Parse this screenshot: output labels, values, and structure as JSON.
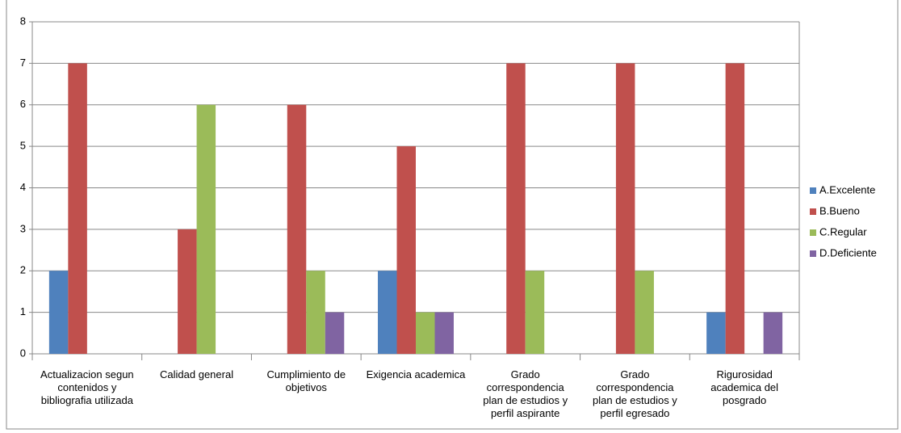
{
  "chart_data": {
    "type": "bar",
    "categories": [
      "Actualizacion segun contenidos y bibliografia utilizada",
      "Calidad general",
      "Cumplimiento de objetivos",
      "Exigencia academica",
      "Grado correspondencia plan de estudios y perfil aspirante",
      "Grado correspondencia plan de estudios y perfil egresado",
      "Rigurosidad academica del posgrado"
    ],
    "series": [
      {
        "name": "A.Excelente",
        "color": "#4f81bd",
        "values": [
          2,
          0,
          0,
          2,
          0,
          0,
          1
        ]
      },
      {
        "name": "B.Bueno",
        "color": "#c0504d",
        "values": [
          7,
          3,
          6,
          5,
          7,
          7,
          7
        ]
      },
      {
        "name": "C.Regular",
        "color": "#9bbb59",
        "values": [
          0,
          6,
          2,
          1,
          2,
          2,
          0
        ]
      },
      {
        "name": "D.Deficiente",
        "color": "#8064a2",
        "values": [
          0,
          0,
          1,
          1,
          0,
          0,
          1
        ]
      }
    ],
    "ylim": [
      0,
      8
    ],
    "yticks": [
      0,
      1,
      2,
      3,
      4,
      5,
      6,
      7,
      8
    ],
    "grid": true,
    "legend": "right"
  }
}
